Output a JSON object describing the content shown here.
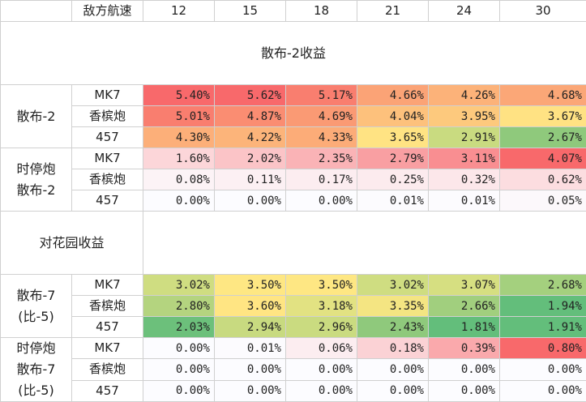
{
  "header": {
    "label": "敌方航速",
    "speeds": [
      "12",
      "15",
      "18",
      "21",
      "24",
      "30"
    ]
  },
  "section1": {
    "title": "散布-2收益"
  },
  "section2": {
    "title": "对花园收益"
  },
  "groups": [
    {
      "label_lines": [
        "散布-2"
      ],
      "rows": [
        {
          "weapon": "MK7",
          "values": [
            "5.40%",
            "5.62%",
            "5.17%",
            "4.66%",
            "4.26%",
            "4.68%"
          ],
          "colors": [
            "#f8696b",
            "#f8696b",
            "#f97e6f",
            "#fba376",
            "#fcb279",
            "#fba777"
          ]
        },
        {
          "weapon": "香槟炮",
          "values": [
            "5.01%",
            "4.87%",
            "4.69%",
            "4.04%",
            "3.95%",
            "3.67%"
          ],
          "colors": [
            "#f97e6f",
            "#fa8d72",
            "#fa9a74",
            "#fdc17c",
            "#fdc97d",
            "#ffe283"
          ]
        },
        {
          "weapon": "457",
          "values": [
            "4.30%",
            "4.22%",
            "4.33%",
            "3.65%",
            "2.91%",
            "2.67%"
          ],
          "colors": [
            "#fcaf79",
            "#fcb47a",
            "#fcac78",
            "#ffe383",
            "#c9db80",
            "#8fc97c"
          ]
        }
      ]
    },
    {
      "label_lines": [
        "时停炮",
        "散布-2"
      ],
      "rows": [
        {
          "weapon": "MK7",
          "values": [
            "1.60%",
            "2.02%",
            "2.35%",
            "2.79%",
            "3.11%",
            "4.07%"
          ],
          "colors": [
            "#fcd6d9",
            "#fbc4c7",
            "#fab3b6",
            "#f99fa2",
            "#f98e91",
            "#f8696b"
          ]
        },
        {
          "weapon": "香槟炮",
          "values": [
            "0.08%",
            "0.11%",
            "0.17%",
            "0.25%",
            "0.32%",
            "0.62%"
          ],
          "colors": [
            "#fcf3f6",
            "#fcf0f3",
            "#fcedf0",
            "#fcebee",
            "#fce7ea",
            "#fcdde0"
          ]
        },
        {
          "weapon": "457",
          "values": [
            "0.00%",
            "0.00%",
            "0.00%",
            "0.01%",
            "0.01%",
            "0.05%"
          ],
          "colors": [
            "#fcfcff",
            "#fcfcff",
            "#fcfcff",
            "#fcfbfe",
            "#fcfbfe",
            "#fcf8fb"
          ]
        }
      ]
    },
    {
      "label_lines": [
        "散布-7",
        "(比-5)"
      ],
      "rows": [
        {
          "weapon": "MK7",
          "values": [
            "3.02%",
            "3.50%",
            "3.50%",
            "3.02%",
            "3.07%",
            "2.68%"
          ],
          "colors": [
            "#cfdd81",
            "#fee783",
            "#fee783",
            "#cfdd81",
            "#d6df81",
            "#a4d07e"
          ]
        },
        {
          "weapon": "香槟炮",
          "values": [
            "2.80%",
            "3.60%",
            "3.18%",
            "3.35%",
            "2.66%",
            "1.94%"
          ],
          "colors": [
            "#b4d47f",
            "#ffe583",
            "#e2e282",
            "#f4e582",
            "#a1cf7e",
            "#63be7b"
          ]
        },
        {
          "weapon": "457",
          "values": [
            "2.03%",
            "2.94%",
            "2.96%",
            "2.43%",
            "1.81%",
            "1.91%"
          ],
          "colors": [
            "#6cc07b",
            "#c8da80",
            "#cadb80",
            "#8fc97c",
            "#63be7b",
            "#63be7b"
          ]
        }
      ]
    },
    {
      "label_lines": [
        "时停炮",
        "散布-7",
        "(比-5)"
      ],
      "rows": [
        {
          "weapon": "MK7",
          "values": [
            "0.00%",
            "0.01%",
            "0.06%",
            "0.18%",
            "0.39%",
            "0.80%"
          ],
          "colors": [
            "#fcfcff",
            "#fcfbfe",
            "#fcedf0",
            "#fbd2d5",
            "#faa9ac",
            "#f8696b"
          ]
        },
        {
          "weapon": "香槟炮",
          "values": [
            "0.00%",
            "0.00%",
            "0.00%",
            "0.00%",
            "0.00%",
            "0.00%"
          ],
          "colors": [
            "#fcfcff",
            "#fcfcff",
            "#fcfcff",
            "#fcfcff",
            "#fcfcff",
            "#fcfcff"
          ]
        },
        {
          "weapon": "457",
          "values": [
            "0.00%",
            "0.00%",
            "0.00%",
            "0.00%",
            "0.00%",
            "0.00%"
          ],
          "colors": [
            "#fcfcff",
            "#fcfcff",
            "#fcfcff",
            "#fcfcff",
            "#fcfcff",
            "#fcfcff"
          ]
        }
      ]
    }
  ]
}
